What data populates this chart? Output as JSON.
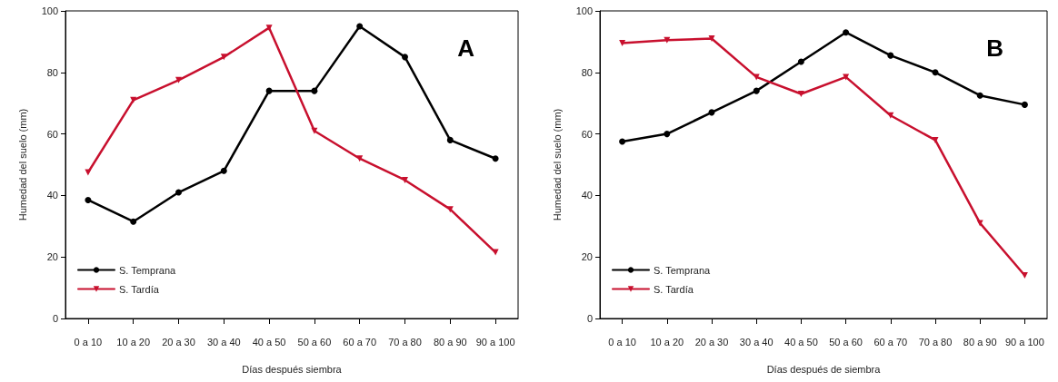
{
  "chart_data": [
    {
      "type": "line",
      "xlabel": "Días después siembra",
      "ylabel": "Humedad del suelo (mm)",
      "annotations": [
        "A"
      ],
      "categories": [
        "0 a 10",
        "10 a 20",
        "20 a 30",
        "30 a 40",
        "40 a 50",
        "50 a 60",
        "60 a 70",
        "70 a 80",
        "80 a 90",
        "90 a 100"
      ],
      "series": [
        {
          "name": "S. Temprana",
          "color": "#000000",
          "marker": "circle",
          "values": [
            38.5,
            31.5,
            41,
            48,
            74,
            74,
            95,
            85,
            58,
            52
          ]
        },
        {
          "name": "S. Tardía",
          "color": "#c8102e",
          "marker": "triangle",
          "values": [
            47.5,
            71,
            77.5,
            85,
            94.5,
            61,
            52,
            45,
            35.5,
            21.5
          ]
        }
      ],
      "ylim": [
        0,
        100
      ],
      "yticks": [
        0,
        20,
        40,
        60,
        80,
        100
      ],
      "grid": false,
      "legend": "bottom left",
      "line_style": "solid"
    },
    {
      "type": "line",
      "xlabel": "Días después de siembra",
      "ylabel": "Humedad del suelo (mm)",
      "annotations": [
        "B"
      ],
      "categories": [
        "0 a 10",
        "10 a 20",
        "20 a 30",
        "30 a 40",
        "40 a 50",
        "50 a 60",
        "60 a 70",
        "70 a 80",
        "80 a 90",
        "90 a 100"
      ],
      "series": [
        {
          "name": "S. Temprana",
          "color": "#000000",
          "marker": "circle",
          "values": [
            57.5,
            60,
            67,
            74,
            83.5,
            93,
            85.5,
            80,
            72.5,
            69.5
          ]
        },
        {
          "name": "S. Tardía",
          "color": "#c8102e",
          "marker": "triangle",
          "values": [
            89.5,
            90.5,
            91,
            78.5,
            73,
            78.5,
            66,
            58,
            31,
            14
          ]
        }
      ],
      "ylim": [
        0,
        100
      ],
      "yticks": [
        0,
        20,
        40,
        60,
        80,
        100
      ],
      "grid": false,
      "legend": "bottom left",
      "line_style": "solid"
    }
  ]
}
